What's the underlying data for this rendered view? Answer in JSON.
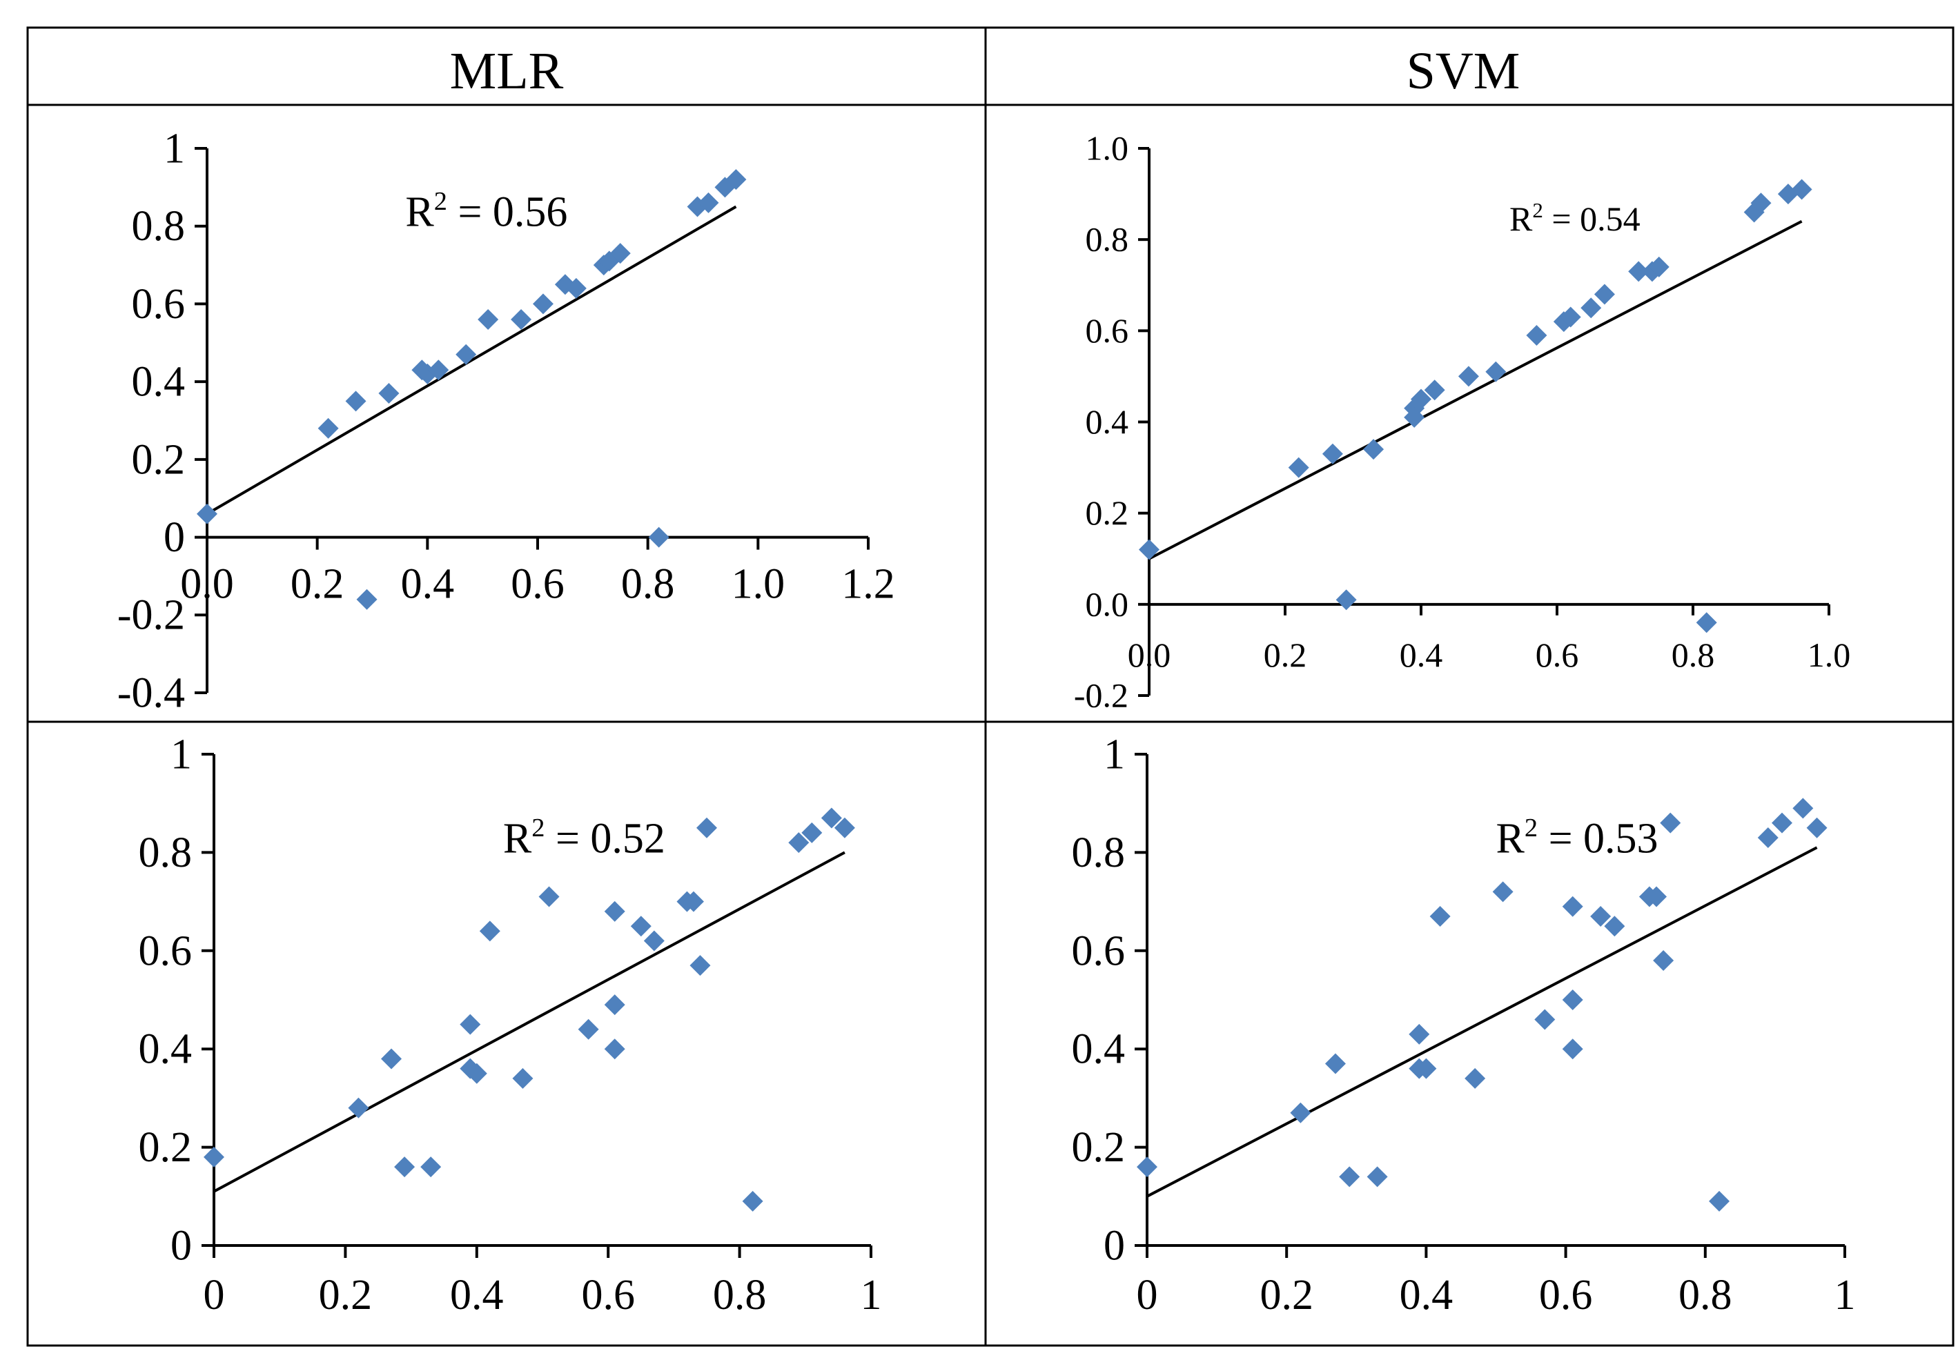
{
  "headers": {
    "left": "MLR",
    "right": "SVM"
  },
  "colors": {
    "marker": "#4F81BD",
    "line": "#000000",
    "frame": "#000000"
  },
  "chart_data": [
    {
      "id": "mlr-top",
      "type": "scatter",
      "model": "MLR",
      "annotation": {
        "text": "R",
        "sup": "2",
        "rest": " = 0.56",
        "x": 0.36,
        "y": 0.8
      },
      "trendline": [
        [
          0.0,
          0.06
        ],
        [
          0.96,
          0.85
        ]
      ],
      "xlim": [
        0,
        1.2
      ],
      "ylim": [
        -0.4,
        1
      ],
      "xticks": [
        0,
        0.2,
        0.4,
        0.6,
        0.8,
        1.0,
        1.2
      ],
      "xtick_labels": [
        "0.0",
        "0.2",
        "0.4",
        "0.6",
        "0.8",
        "1.0",
        "1.2"
      ],
      "yticks": [
        -0.4,
        -0.2,
        0,
        0.2,
        0.4,
        0.6,
        0.8,
        1
      ],
      "ytick_labels": [
        "-0.4",
        "-0.2",
        "0",
        "0.2",
        "0.4",
        "0.6",
        "0.8",
        "1"
      ],
      "x_axis_at": 0,
      "points": [
        [
          0.0,
          0.06
        ],
        [
          0.22,
          0.28
        ],
        [
          0.27,
          0.35
        ],
        [
          0.33,
          0.37
        ],
        [
          0.39,
          0.43
        ],
        [
          0.4,
          0.42
        ],
        [
          0.42,
          0.43
        ],
        [
          0.47,
          0.47
        ],
        [
          0.51,
          0.56
        ],
        [
          0.57,
          0.56
        ],
        [
          0.61,
          0.6
        ],
        [
          0.65,
          0.65
        ],
        [
          0.67,
          0.64
        ],
        [
          0.72,
          0.7
        ],
        [
          0.73,
          0.71
        ],
        [
          0.75,
          0.73
        ],
        [
          0.82,
          0.0
        ],
        [
          0.89,
          0.85
        ],
        [
          0.91,
          0.86
        ],
        [
          0.94,
          0.9
        ],
        [
          0.96,
          0.92
        ],
        [
          0.29,
          -0.16
        ]
      ]
    },
    {
      "id": "svm-top",
      "type": "scatter",
      "model": "SVM",
      "annotation": {
        "text": "R",
        "sup": "2",
        "rest": " = 0.54",
        "x": 0.53,
        "y": 0.82
      },
      "trendline": [
        [
          0.0,
          0.1
        ],
        [
          0.96,
          0.84
        ]
      ],
      "xlim": [
        0,
        1.0
      ],
      "ylim": [
        -0.2,
        1.0
      ],
      "xticks": [
        0,
        0.2,
        0.4,
        0.6,
        0.8,
        1.0
      ],
      "xtick_labels": [
        "0.0",
        "0.2",
        "0.4",
        "0.6",
        "0.8",
        "1.0"
      ],
      "yticks": [
        -0.2,
        0,
        0.2,
        0.4,
        0.6,
        0.8,
        1.0
      ],
      "ytick_labels": [
        "-0.2",
        "0.0",
        "0.2",
        "0.4",
        "0.6",
        "0.8",
        "1.0"
      ],
      "x_axis_at": 0,
      "points": [
        [
          0.0,
          0.12
        ],
        [
          0.22,
          0.3
        ],
        [
          0.27,
          0.33
        ],
        [
          0.29,
          0.01
        ],
        [
          0.33,
          0.34
        ],
        [
          0.39,
          0.43
        ],
        [
          0.39,
          0.41
        ],
        [
          0.4,
          0.45
        ],
        [
          0.42,
          0.47
        ],
        [
          0.47,
          0.5
        ],
        [
          0.51,
          0.51
        ],
        [
          0.57,
          0.59
        ],
        [
          0.61,
          0.62
        ],
        [
          0.62,
          0.63
        ],
        [
          0.65,
          0.65
        ],
        [
          0.67,
          0.68
        ],
        [
          0.72,
          0.73
        ],
        [
          0.74,
          0.73
        ],
        [
          0.75,
          0.74
        ],
        [
          0.82,
          -0.04
        ],
        [
          0.89,
          0.86
        ],
        [
          0.9,
          0.88
        ],
        [
          0.94,
          0.9
        ],
        [
          0.96,
          0.91
        ]
      ]
    },
    {
      "id": "mlr-bottom",
      "type": "scatter",
      "model": "MLR",
      "annotation": {
        "text": "R",
        "sup": "2",
        "rest": " = 0.52",
        "x": 0.44,
        "y": 0.8
      },
      "trendline": [
        [
          0.0,
          0.11
        ],
        [
          0.96,
          0.8
        ]
      ],
      "xlim": [
        0,
        1
      ],
      "ylim": [
        0,
        1
      ],
      "xticks": [
        0,
        0.2,
        0.4,
        0.6,
        0.8,
        1
      ],
      "xtick_labels": [
        "0",
        "0.2",
        "0.4",
        "0.6",
        "0.8",
        "1"
      ],
      "yticks": [
        0,
        0.2,
        0.4,
        0.6,
        0.8,
        1
      ],
      "ytick_labels": [
        "0",
        "0.2",
        "0.4",
        "0.6",
        "0.8",
        "1"
      ],
      "x_axis_at": 0,
      "points": [
        [
          0.0,
          0.18
        ],
        [
          0.22,
          0.28
        ],
        [
          0.27,
          0.38
        ],
        [
          0.29,
          0.16
        ],
        [
          0.33,
          0.16
        ],
        [
          0.39,
          0.36
        ],
        [
          0.39,
          0.45
        ],
        [
          0.4,
          0.35
        ],
        [
          0.42,
          0.64
        ],
        [
          0.47,
          0.34
        ],
        [
          0.51,
          0.71
        ],
        [
          0.57,
          0.44
        ],
        [
          0.61,
          0.68
        ],
        [
          0.61,
          0.49
        ],
        [
          0.61,
          0.4
        ],
        [
          0.65,
          0.65
        ],
        [
          0.67,
          0.62
        ],
        [
          0.72,
          0.7
        ],
        [
          0.73,
          0.7
        ],
        [
          0.74,
          0.57
        ],
        [
          0.75,
          0.85
        ],
        [
          0.82,
          0.09
        ],
        [
          0.89,
          0.82
        ],
        [
          0.91,
          0.84
        ],
        [
          0.94,
          0.87
        ],
        [
          0.96,
          0.85
        ]
      ]
    },
    {
      "id": "svm-bottom",
      "type": "scatter",
      "model": "SVM",
      "annotation": {
        "text": "R",
        "sup": "2",
        "rest": " = 0.53",
        "x": 0.5,
        "y": 0.8
      },
      "trendline": [
        [
          0.0,
          0.1
        ],
        [
          0.96,
          0.81
        ]
      ],
      "xlim": [
        0,
        1
      ],
      "ylim": [
        0,
        1
      ],
      "xticks": [
        0,
        0.2,
        0.4,
        0.6,
        0.8,
        1
      ],
      "xtick_labels": [
        "0",
        "0.2",
        "0.4",
        "0.6",
        "0.8",
        "1"
      ],
      "yticks": [
        0,
        0.2,
        0.4,
        0.6,
        0.8,
        1
      ],
      "ytick_labels": [
        "0",
        "0.2",
        "0.4",
        "0.6",
        "0.8",
        "1"
      ],
      "x_axis_at": 0,
      "points": [
        [
          0.0,
          0.16
        ],
        [
          0.22,
          0.27
        ],
        [
          0.27,
          0.37
        ],
        [
          0.29,
          0.14
        ],
        [
          0.33,
          0.14
        ],
        [
          0.39,
          0.36
        ],
        [
          0.39,
          0.43
        ],
        [
          0.4,
          0.36
        ],
        [
          0.42,
          0.67
        ],
        [
          0.47,
          0.34
        ],
        [
          0.51,
          0.72
        ],
        [
          0.57,
          0.46
        ],
        [
          0.61,
          0.69
        ],
        [
          0.61,
          0.5
        ],
        [
          0.61,
          0.4
        ],
        [
          0.65,
          0.67
        ],
        [
          0.67,
          0.65
        ],
        [
          0.72,
          0.71
        ],
        [
          0.73,
          0.71
        ],
        [
          0.74,
          0.58
        ],
        [
          0.75,
          0.86
        ],
        [
          0.82,
          0.09
        ],
        [
          0.89,
          0.83
        ],
        [
          0.91,
          0.86
        ],
        [
          0.94,
          0.89
        ],
        [
          0.96,
          0.85
        ]
      ]
    }
  ]
}
